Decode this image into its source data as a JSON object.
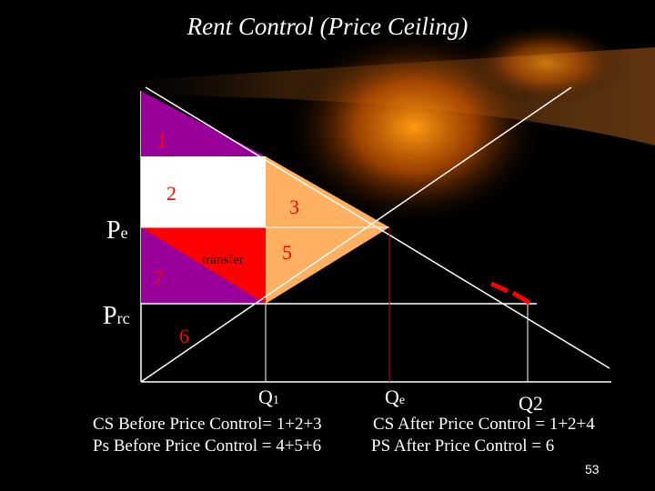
{
  "title": "Rent Control (Price Ceiling)",
  "regions": {
    "r1": "1",
    "r2": "2",
    "r3": "3",
    "r5": "5",
    "r6": "6",
    "r7": "7",
    "transfer": "transfer"
  },
  "axis": {
    "pe_main": "P",
    "pe_sub": "e",
    "prc_main": "P",
    "prc_sub": "rc",
    "q1_main": "Q",
    "q1_sub": "1",
    "qe_main": "Q",
    "qe_sub": "e",
    "q2": "Q2"
  },
  "summary": {
    "cs_before": "CS Before Price Control= 1+2+3",
    "ps_before": "Ps Before Price Control = 4+5+6",
    "cs_after": "CS After Price Control = 1+2+4",
    "ps_after": "PS After Price Control = 6"
  },
  "page_number": "53",
  "colors": {
    "region1": "#990099",
    "region7": "#990099",
    "orange": "#ffb060",
    "red": "#ff0000",
    "glow": "#ff8a00"
  }
}
